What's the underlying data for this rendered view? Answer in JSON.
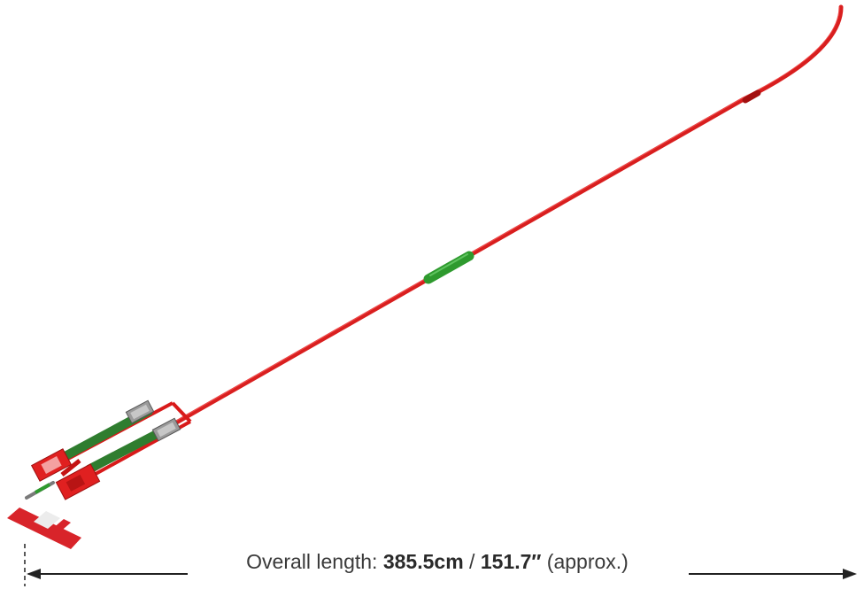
{
  "caption": {
    "prefix": "Overall length: ",
    "metric": "385.5cm",
    "separator": " / ",
    "imperial": "151.7″",
    "suffix": " (approx.)"
  },
  "colors": {
    "pole": "#d81a1a",
    "grip": "#2e9a2e",
    "strap": "#2f7d2f",
    "cap": "#e02020",
    "flag_red": "#d8242a",
    "flag_white": "#ececec",
    "buckle": "#9a9a9a",
    "arrow": "#222222"
  },
  "icons": {
    "left_arrow": "arrow-left-icon",
    "right_arrow": "arrow-right-icon"
  }
}
